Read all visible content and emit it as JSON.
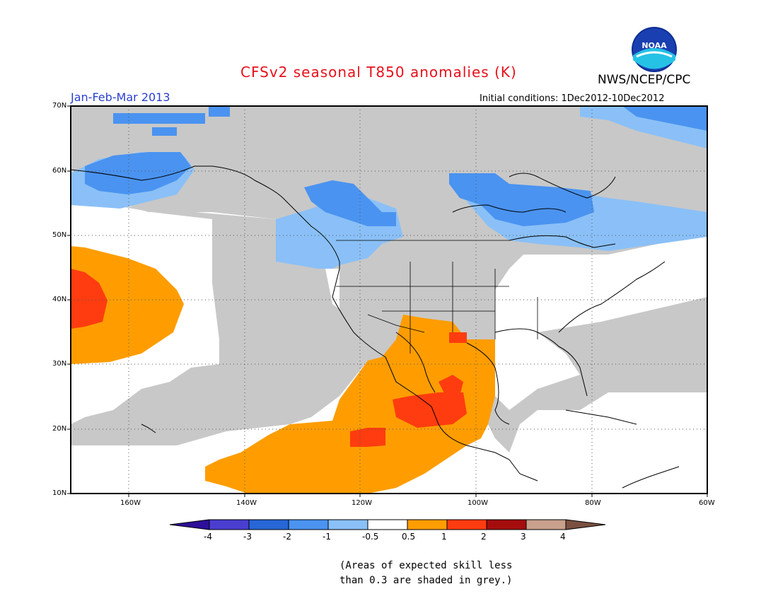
{
  "header": {
    "title": "CFSv2 seasonal T850 anomalies (K)",
    "agency": "NWS/NCEP/CPC",
    "season": "Jan-Feb-Mar 2013",
    "initial_conditions": "Initial conditions: 1Dec2012-10Dec2012"
  },
  "map": {
    "lat_labels": [
      "70N",
      "60N",
      "50N",
      "40N",
      "30N",
      "20N",
      "10N"
    ],
    "lon_labels": [
      "160W",
      "140W",
      "120W",
      "100W",
      "80W",
      "60W"
    ],
    "grid": true
  },
  "legend": {
    "ticks": [
      "-4",
      "-3",
      "-2",
      "-1",
      "-0.5",
      "0.5",
      "1",
      "2",
      "3",
      "4"
    ],
    "colors": [
      "#2e0f9a",
      "#4a3ed1",
      "#2766d6",
      "#4a93f0",
      "#8ac0f7",
      "#ffffff",
      "#ff9d00",
      "#ff3c0f",
      "#a50d0d",
      "#c8a08c",
      "#7a5040"
    ]
  },
  "footnote": {
    "line1": "(Areas of expected skill less",
    "line2": "than 0.3 are shaded in grey.)"
  },
  "logo": {
    "text": "NOAA"
  }
}
